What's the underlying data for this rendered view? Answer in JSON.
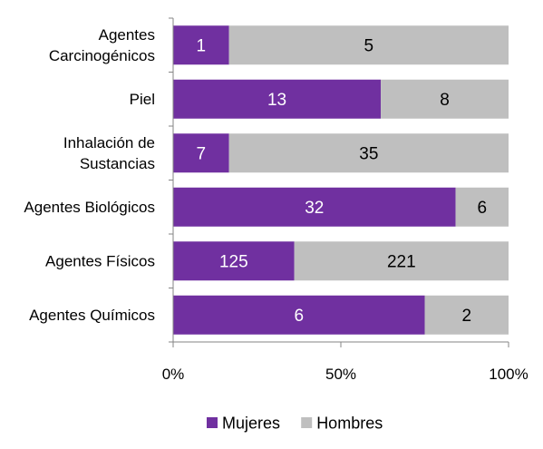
{
  "chart_data": {
    "type": "bar",
    "orientation": "horizontal",
    "stacking": "percent",
    "categories": [
      [
        "Agentes",
        "Carcinogénicos"
      ],
      [
        "Piel"
      ],
      [
        "Inhalación de",
        "Sustancias"
      ],
      [
        "Agentes Biológicos"
      ],
      [
        "Agentes Físicos"
      ],
      [
        "Agentes Químicos"
      ]
    ],
    "series": [
      {
        "name": "Mujeres",
        "values": [
          1,
          13,
          7,
          32,
          125,
          6
        ],
        "color": "#7030a0",
        "label_color": "#ffffff"
      },
      {
        "name": "Hombres",
        "values": [
          5,
          8,
          35,
          6,
          221,
          2
        ],
        "color": "#bfbfbf",
        "label_color": "#000000"
      }
    ],
    "xaxis": {
      "ticks": [
        "0%",
        "50%",
        "100%"
      ],
      "range": [
        0,
        1
      ]
    },
    "legend": {
      "position": "bottom"
    },
    "grid": false
  }
}
